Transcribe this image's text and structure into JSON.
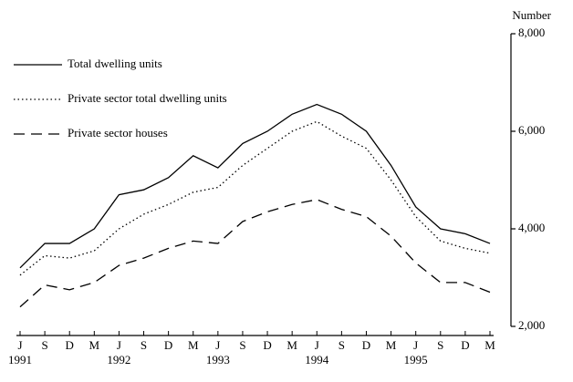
{
  "chart_data": {
    "type": "line",
    "y_unit": "Number",
    "categories": [
      "J",
      "S",
      "D",
      "M",
      "J",
      "S",
      "D",
      "M",
      "J",
      "S",
      "D",
      "M",
      "J",
      "S",
      "D",
      "M",
      "J",
      "S",
      "D",
      "M"
    ],
    "year_labels": [
      "1991",
      null,
      null,
      null,
      "1992",
      null,
      null,
      null,
      "1993",
      null,
      null,
      null,
      "1994",
      null,
      null,
      null,
      "1995",
      null,
      null,
      null
    ],
    "series": [
      {
        "name": "Total dwelling units",
        "color": "#000000",
        "style": "solid",
        "values": [
          3200,
          3700,
          3700,
          4000,
          4700,
          4800,
          5050,
          5500,
          5250,
          5750,
          6000,
          6350,
          6550,
          6350,
          6000,
          5300,
          4450,
          4000,
          3900,
          3700
        ]
      },
      {
        "name": "Private sector total dwelling units",
        "color": "#000000",
        "style": "dotted",
        "values": [
          3050,
          3450,
          3400,
          3550,
          4000,
          4300,
          4500,
          4750,
          4850,
          5300,
          5650,
          6000,
          6200,
          5900,
          5650,
          5000,
          4250,
          3750,
          3600,
          3500
        ]
      },
      {
        "name": "Private sector houses",
        "color": "#000000",
        "style": "dashed",
        "values": [
          2400,
          2850,
          2750,
          2900,
          3250,
          3400,
          3600,
          3750,
          3700,
          4150,
          4350,
          4500,
          4600,
          4400,
          4250,
          3850,
          3300,
          2900,
          2900,
          2700
        ]
      }
    ],
    "ylim": [
      2000,
      8000
    ],
    "yticks": [
      {
        "value": 2000,
        "label": "2,000"
      },
      {
        "value": 4000,
        "label": "4,000"
      },
      {
        "value": 6000,
        "label": "6,000"
      },
      {
        "value": 8000,
        "label": "8,000"
      }
    ],
    "grid": false,
    "legend": "top-left"
  }
}
